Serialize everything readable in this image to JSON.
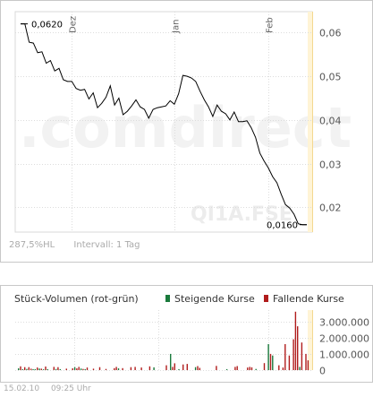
{
  "watermark": {
    "text": ".comdirect",
    "symbol": "QI1A.FSE"
  },
  "price_panel": {
    "change": "287,5%HL",
    "interval": "Intervall: 1 Tag"
  },
  "volume_panel": {
    "title": "Stück-Volumen (rot-grün)",
    "legend_up": "Steigende Kurse",
    "legend_down": "Fallende Kurse",
    "color_up": "#1a7a3c",
    "color_down": "#b01c1c"
  },
  "footer": {
    "date": "15.02.10",
    "time": "09:25 Uhr"
  },
  "chart_data": [
    {
      "type": "line",
      "x_labels": [
        "Dez",
        "Jan",
        "Feb"
      ],
      "y_ticks": [
        "0,06",
        "0,05",
        "0,04",
        "0,03",
        "0,02"
      ],
      "ylim": [
        0.0143,
        0.0648
      ],
      "high_label": "0,0620",
      "low_label": "0,0160",
      "color": "#000000",
      "values": [
        0.062,
        0.062,
        0.0578,
        0.0576,
        0.0554,
        0.0556,
        0.053,
        0.0536,
        0.0512,
        0.0518,
        0.0492,
        0.0488,
        0.0488,
        0.0472,
        0.0468,
        0.047,
        0.0448,
        0.0462,
        0.0428,
        0.0438,
        0.0452,
        0.0478,
        0.0434,
        0.045,
        0.0412,
        0.042,
        0.0432,
        0.0446,
        0.043,
        0.0424,
        0.0404,
        0.0424,
        0.0428,
        0.043,
        0.0432,
        0.0444,
        0.0436,
        0.046,
        0.0502,
        0.05,
        0.0496,
        0.0488,
        0.0466,
        0.0446,
        0.043,
        0.0408,
        0.0434,
        0.042,
        0.0414,
        0.04,
        0.0418,
        0.0396,
        0.0396,
        0.0398,
        0.0382,
        0.036,
        0.0324,
        0.0306,
        0.029,
        0.027,
        0.0256,
        0.023,
        0.0206,
        0.0198,
        0.0184,
        0.0162,
        0.016,
        0.016
      ]
    },
    {
      "type": "bar",
      "y_ticks": [
        "3.000.000",
        "2.000.000",
        "1.000.000",
        "0"
      ],
      "ylim": [
        0,
        3700000
      ],
      "volumes": [
        110000,
        230000,
        60000,
        180000,
        70000,
        180000,
        90000,
        60000,
        60000,
        160000,
        100000,
        90000,
        50000,
        220000,
        60000,
        0,
        0,
        200000,
        70000,
        180000,
        60000,
        0,
        0,
        90000,
        0,
        0,
        110000,
        180000,
        110000,
        200000,
        100000,
        70000,
        60000,
        160000,
        0,
        0,
        90000,
        0,
        0,
        180000,
        0,
        0,
        70000,
        0,
        0,
        0,
        120000,
        200000,
        110000,
        0,
        120000,
        0,
        0,
        0,
        180000,
        0,
        200000,
        0,
        0,
        160000,
        0,
        0,
        0,
        230000,
        0,
        170000,
        0,
        0,
        0,
        0,
        0,
        300000,
        0,
        1000000,
        200000,
        420000,
        0,
        60000,
        0,
        350000,
        0,
        380000,
        0,
        0,
        0,
        180000,
        250000,
        140000,
        0,
        0,
        0,
        0,
        0,
        0,
        0,
        260000,
        0,
        0,
        0,
        0,
        60000,
        0,
        0,
        0,
        200000,
        250000,
        0,
        0,
        0,
        0,
        160000,
        200000,
        170000,
        0,
        70000,
        0,
        0,
        0,
        430000,
        0,
        1600000,
        1000000,
        900000,
        0,
        0,
        300000,
        0,
        160000,
        1600000,
        0,
        900000,
        0,
        1900000,
        3600000,
        2700000,
        200000,
        1700000,
        0,
        1000000,
        600000
      ],
      "directions": [
        "u",
        "d",
        "u",
        "d",
        "u",
        "d",
        "d",
        "u",
        "u",
        "d",
        "u",
        "d",
        "u",
        "d",
        "u",
        "u",
        "u",
        "d",
        "u",
        "d",
        "u",
        "u",
        "u",
        "d",
        "u",
        "u",
        "d",
        "u",
        "d",
        "d",
        "u",
        "d",
        "u",
        "d",
        "u",
        "u",
        "d",
        "u",
        "u",
        "d",
        "u",
        "u",
        "d",
        "u",
        "u",
        "u",
        "d",
        "d",
        "u",
        "u",
        "d",
        "u",
        "u",
        "u",
        "d",
        "u",
        "d",
        "u",
        "u",
        "d",
        "u",
        "u",
        "u",
        "d",
        "u",
        "u",
        "u",
        "u",
        "u",
        "u",
        "u",
        "d",
        "u",
        "u",
        "d",
        "d",
        "u",
        "u",
        "u",
        "d",
        "u",
        "d",
        "u",
        "u",
        "u",
        "u",
        "d",
        "d",
        "u",
        "u",
        "u",
        "u",
        "u",
        "u",
        "u",
        "d",
        "u",
        "u",
        "u",
        "u",
        "u",
        "u",
        "u",
        "u",
        "d",
        "d",
        "u",
        "u",
        "u",
        "u",
        "d",
        "d",
        "d",
        "u",
        "u",
        "u",
        "u",
        "u",
        "d",
        "u",
        "u",
        "d",
        "u",
        "u",
        "u",
        "d",
        "u",
        "d",
        "d",
        "u",
        "d",
        "u",
        "d",
        "d",
        "d",
        "u",
        "d",
        "u",
        "d",
        "d"
      ]
    }
  ]
}
